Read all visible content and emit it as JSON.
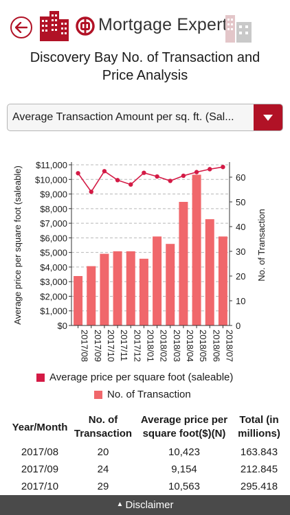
{
  "header": {
    "title": "Mortgage Expert",
    "brand_color": "#b11226",
    "back_icon": "back-arrow-icon",
    "logo_icon": "boc-logo-icon"
  },
  "page_title_line1": "Discovery Bay No. of Transaction and",
  "page_title_line2": "Price Analysis",
  "dropdown": {
    "selected": "Average Transaction Amount per sq. ft. (Saleable)",
    "icon": "caret-down-icon"
  },
  "chart_data": {
    "type": "bar-line-combo",
    "categories": [
      "2017/08",
      "2017/09",
      "2017/10",
      "2017/11",
      "2017/12",
      "2018/01",
      "2018/02",
      "2018/03",
      "2018/04",
      "2018/05",
      "2018/06",
      "2018/07"
    ],
    "series": [
      {
        "name": "Average price per square foot (saleable)",
        "type": "line",
        "axis": "left",
        "color": "#d41a45",
        "values": [
          10423,
          9154,
          10563,
          9950,
          9650,
          10450,
          10200,
          9900,
          10250,
          10500,
          10700,
          10850
        ]
      },
      {
        "name": "No. of Transaction",
        "type": "bar",
        "axis": "right",
        "color": "#f0676b",
        "values": [
          20,
          24,
          29,
          30,
          30,
          27,
          36,
          33,
          50,
          61,
          43,
          36
        ]
      }
    ],
    "ylabel_left": "Average price per square foot (saleable)",
    "ylabel_right": "No. of Transaction",
    "ylim_left": [
      0,
      11000
    ],
    "ylim_right": [
      0,
      65
    ],
    "yticks_left": [
      "$0",
      "$1,000",
      "$2,000",
      "$3,000",
      "$4,000",
      "$5,000",
      "$6,000",
      "$7,000",
      "$8,000",
      "$9,000",
      "$10,000",
      "$11,000"
    ],
    "yticks_right": [
      "0",
      "10",
      "20",
      "30",
      "40",
      "50",
      "60"
    ],
    "grid": "dashed horizontal",
    "legend_position": "bottom"
  },
  "table": {
    "headers": [
      {
        "line1": "Year/Month",
        "line2": ""
      },
      {
        "line1": "No. of",
        "line2": "Transaction"
      },
      {
        "line1": "Average price per",
        "line2": "square foot($)(N)"
      },
      {
        "line1": "Total (in",
        "line2": "millions)"
      }
    ],
    "rows": [
      [
        "2017/08",
        "20",
        "10,423",
        "163.843"
      ],
      [
        "2017/09",
        "24",
        "9,154",
        "212.845"
      ],
      [
        "2017/10",
        "29",
        "10,563",
        "295.418"
      ]
    ]
  },
  "footer": {
    "label": "Disclaimer",
    "arrow": "▲"
  }
}
